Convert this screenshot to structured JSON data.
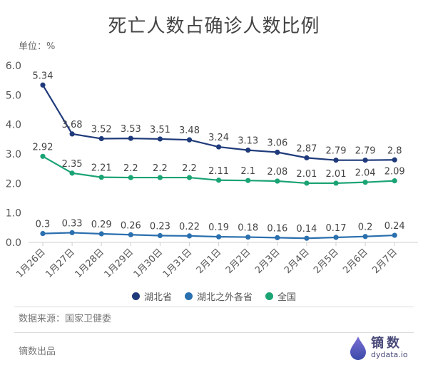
{
  "title": "死亡人数占确诊人数比例",
  "unit_label": "单位：%",
  "source_text": "数据来源：国家卫健委",
  "footer_text": "镝数出品",
  "logo": {
    "cn": "镝数",
    "en": "dydata.io"
  },
  "colors": {
    "hubei": "#1f3a7a",
    "outside": "#2a6fae",
    "national": "#1aa373",
    "axis": "#cfcfcf",
    "text": "#555555"
  },
  "chart_data": {
    "type": "line",
    "title": "死亡人数占确诊人数比例",
    "ylabel": "单位：%",
    "ylim": [
      0,
      6
    ],
    "yticks": [
      "0.0",
      "1.0",
      "2.0",
      "3.0",
      "4.0",
      "5.0",
      "6.0"
    ],
    "categories": [
      "1月26日",
      "1月27日",
      "1月28日",
      "1月29日",
      "1月30日",
      "1月31日",
      "2月1日",
      "2月2日",
      "2月3日",
      "2月4日",
      "2月5日",
      "2月6日",
      "2月7日"
    ],
    "legend_position": "bottom",
    "grid": false,
    "series": [
      {
        "name": "湖北省",
        "color": "#1f3a7a",
        "values": [
          5.34,
          3.68,
          3.52,
          3.53,
          3.51,
          3.48,
          3.24,
          3.13,
          3.06,
          2.87,
          2.79,
          2.79,
          2.8
        ],
        "labels": [
          "5.34",
          "3.68",
          "3.52",
          "3.53",
          "3.51",
          "3.48",
          "3.24",
          "3.13",
          "3.06",
          "2.87",
          "2.79",
          "2.79",
          "2.8"
        ]
      },
      {
        "name": "湖北之外各省",
        "color": "#2a6fae",
        "values": [
          0.3,
          0.33,
          0.29,
          0.26,
          0.23,
          0.22,
          0.19,
          0.18,
          0.16,
          0.14,
          0.17,
          0.2,
          0.24
        ],
        "labels": [
          "0.3",
          "0.33",
          "0.29",
          "0.26",
          "0.23",
          "0.22",
          "0.19",
          "0.18",
          "0.16",
          "0.14",
          "0.17",
          "0.2",
          "0.24"
        ]
      },
      {
        "name": "全国",
        "color": "#1aa373",
        "values": [
          2.92,
          2.35,
          2.21,
          2.2,
          2.2,
          2.2,
          2.11,
          2.1,
          2.08,
          2.01,
          2.01,
          2.04,
          2.09
        ],
        "labels": [
          "2.92",
          "2.35",
          "2.21",
          "2.2",
          "2.2",
          "2.2",
          "2.11",
          "2.1",
          "2.08",
          "2.01",
          "2.01",
          "2.04",
          "2.09"
        ]
      }
    ]
  }
}
